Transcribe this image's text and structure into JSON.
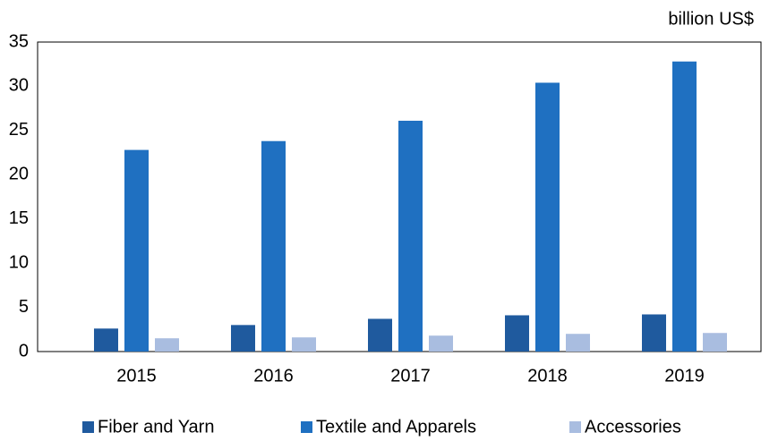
{
  "chart_data": {
    "type": "bar",
    "unit_label": "billion US$",
    "categories": [
      "2015",
      "2016",
      "2017",
      "2018",
      "2019"
    ],
    "series": [
      {
        "name": "Fiber and Yarn",
        "color": "#1f5a9e",
        "values": [
          2.6,
          3.0,
          3.7,
          4.1,
          4.2
        ]
      },
      {
        "name": "Textile and Apparels",
        "color": "#1f70c1",
        "values": [
          22.8,
          23.8,
          26.1,
          30.4,
          32.8
        ]
      },
      {
        "name": "Accessories",
        "color": "#a9bde0",
        "values": [
          1.5,
          1.6,
          1.8,
          2.0,
          2.1
        ]
      }
    ],
    "ylim": [
      0,
      35
    ],
    "yticks": [
      0,
      5,
      10,
      15,
      20,
      25,
      30,
      35
    ],
    "grid": false,
    "legend": "bottom"
  }
}
